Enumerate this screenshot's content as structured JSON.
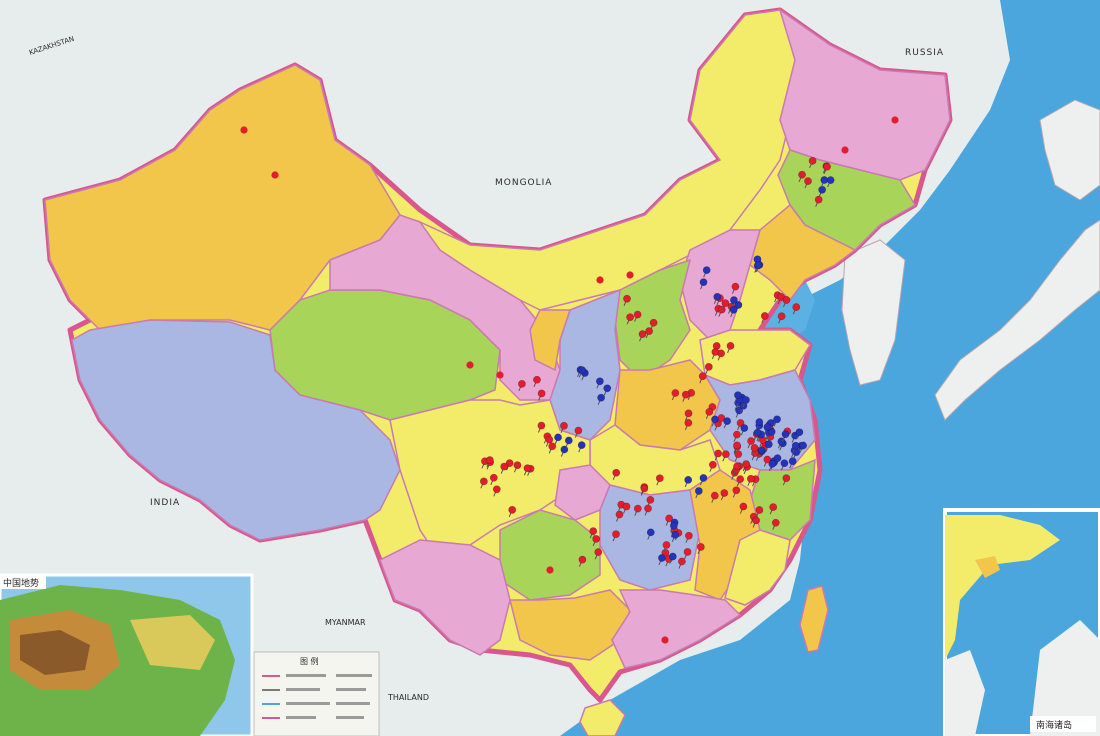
{
  "map": {
    "colors": {
      "sea": "#4aa6dc",
      "sea_light": "#7cc2ea",
      "foreign_land": "#e7ecec",
      "border_pink": "#d9578f",
      "yellow": "#f3ec6a",
      "orange": "#f2c64a",
      "pink": "#e7a9d4",
      "green": "#a9d45a",
      "blue": "#a9b7e2",
      "pin_red": "#e21e2d",
      "pin_blue": "#2433b8"
    },
    "labels": {
      "mongolia": "MONGOLIA",
      "russia": "RUSSIA",
      "kazakhstan": "KAZAKHSTAN",
      "india": "INDIA",
      "myanmar": "MYANMAR",
      "thailand": "THAILAND",
      "inset_physical_title": "中国地势",
      "legend_title": "图 例",
      "inset_south_sea_title": "南海诸岛"
    },
    "pins": {
      "red_count": 140,
      "blue_count": 70
    }
  }
}
